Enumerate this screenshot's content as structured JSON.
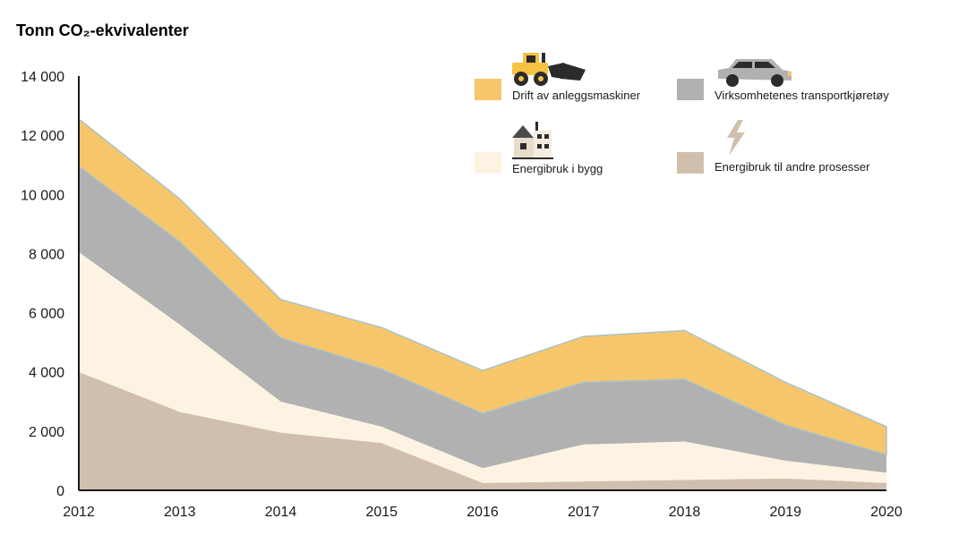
{
  "chart_data": {
    "type": "area",
    "stacked": true,
    "title": "Tonn CO₂-ekvivalenter",
    "xlabel": "",
    "ylabel": "Tonn CO₂-ekvivalenter",
    "x": [
      "2012",
      "2013",
      "2014",
      "2015",
      "2016",
      "2017",
      "2018",
      "2019",
      "2020"
    ],
    "ylim": [
      0,
      14000
    ],
    "yticks": [
      0,
      2000,
      4000,
      6000,
      8000,
      10000,
      12000,
      14000
    ],
    "ytick_labels": [
      "0",
      "2 000",
      "4 000",
      "6 000",
      "8 000",
      "10 000",
      "12 000",
      "14 000"
    ],
    "grid": false,
    "series": [
      {
        "name": "Energibruk til andre prosesser",
        "color": "#d1bfae",
        "values": [
          4000,
          2650,
          1950,
          1600,
          250,
          300,
          350,
          400,
          250
        ]
      },
      {
        "name": "Energibruk i bygg",
        "color": "#fcf3e3",
        "values": [
          4050,
          2950,
          1050,
          550,
          500,
          1250,
          1300,
          600,
          350
        ]
      },
      {
        "name": "Virksomhetenes transportkjøretøy",
        "color": "#b1b1b1",
        "values": [
          2900,
          2800,
          2150,
          1950,
          1850,
          2100,
          2100,
          1200,
          600
        ]
      },
      {
        "name": "Drift av anleggsmaskiner",
        "color": "#f7c66b",
        "values": [
          1600,
          1450,
          1300,
          1400,
          1450,
          1550,
          1650,
          1450,
          950
        ]
      }
    ],
    "legend": [
      {
        "name": "Drift av anleggsmaskiner",
        "color": "#f7c66b",
        "icon": "wheel-loader-icon"
      },
      {
        "name": "Virksomhetenes transportkjøretøy",
        "color": "#b1b1b1",
        "icon": "car-icon"
      },
      {
        "name": "Energibruk i bygg",
        "color": "#fcf3e3",
        "icon": "house-icon"
      },
      {
        "name": "Energibruk til andre prosesser",
        "color": "#d1bfae",
        "icon": "lightning-icon"
      }
    ],
    "legend_position": "top-right"
  }
}
